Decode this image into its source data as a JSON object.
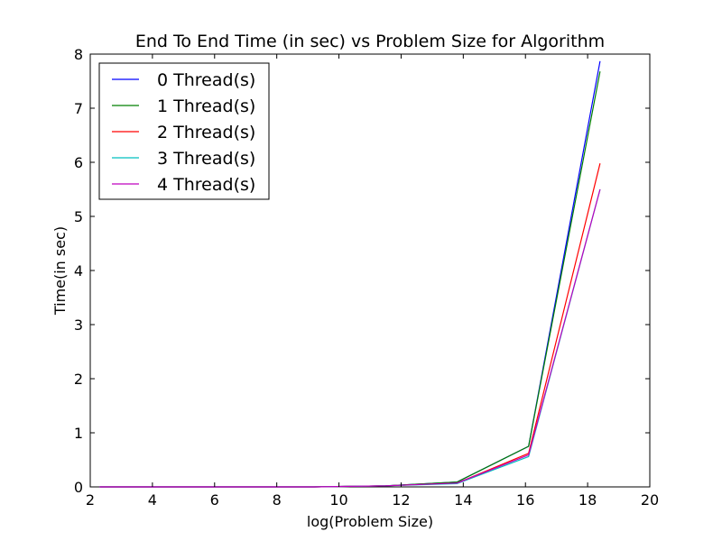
{
  "chart_data": {
    "type": "line",
    "title": "End To End Time (in sec) vs Problem Size for Algorithm",
    "xlabel": "log(Problem Size)",
    "ylabel": "Time(in sec)",
    "xlim": [
      2,
      20
    ],
    "ylim": [
      0,
      8
    ],
    "xticks": [
      2,
      4,
      6,
      8,
      10,
      12,
      14,
      16,
      18,
      20
    ],
    "yticks": [
      0,
      1,
      2,
      3,
      4,
      5,
      6,
      7,
      8
    ],
    "grid": false,
    "legend_position": "top-left",
    "series": [
      {
        "name": "0 Thread(s)",
        "color": "#0000ff",
        "x": [
          2.3,
          4.6,
          6.9,
          9.2,
          11.5,
          13.8,
          16.1,
          18.4
        ],
        "y": [
          0.0,
          0.0,
          0.0,
          0.0,
          0.02,
          0.09,
          0.75,
          7.87
        ]
      },
      {
        "name": "1 Thread(s)",
        "color": "#008000",
        "x": [
          2.3,
          4.6,
          6.9,
          9.2,
          11.5,
          13.8,
          16.1,
          18.4
        ],
        "y": [
          0.0,
          0.0,
          0.0,
          0.0,
          0.02,
          0.09,
          0.75,
          7.68
        ]
      },
      {
        "name": "2 Thread(s)",
        "color": "#ff0000",
        "x": [
          2.3,
          4.6,
          6.9,
          9.2,
          11.5,
          13.8,
          16.1,
          18.4
        ],
        "y": [
          0.0,
          0.0,
          0.0,
          0.0,
          0.02,
          0.07,
          0.62,
          5.98
        ]
      },
      {
        "name": "3 Thread(s)",
        "color": "#00bfbf",
        "x": [
          2.3,
          4.6,
          6.9,
          9.2,
          11.5,
          13.8,
          16.1,
          18.4
        ],
        "y": [
          0.0,
          0.0,
          0.0,
          0.0,
          0.02,
          0.06,
          0.56,
          5.5
        ]
      },
      {
        "name": "4 Thread(s)",
        "color": "#bf00bf",
        "x": [
          2.3,
          4.6,
          6.9,
          9.2,
          11.5,
          13.8,
          16.1,
          18.4
        ],
        "y": [
          0.0,
          0.0,
          0.0,
          0.0,
          0.02,
          0.07,
          0.59,
          5.5
        ]
      }
    ]
  }
}
